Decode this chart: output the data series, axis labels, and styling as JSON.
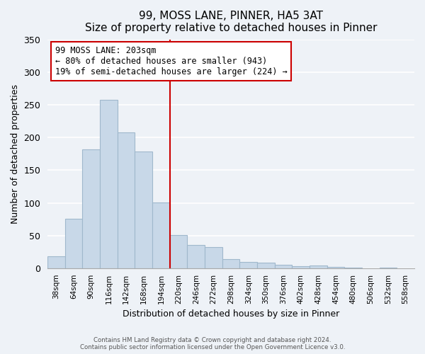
{
  "title": "99, MOSS LANE, PINNER, HA5 3AT",
  "subtitle": "Size of property relative to detached houses in Pinner",
  "xlabel": "Distribution of detached houses by size in Pinner",
  "ylabel": "Number of detached properties",
  "bar_labels": [
    "38sqm",
    "64sqm",
    "90sqm",
    "116sqm",
    "142sqm",
    "168sqm",
    "194sqm",
    "220sqm",
    "246sqm",
    "272sqm",
    "298sqm",
    "324sqm",
    "350sqm",
    "376sqm",
    "402sqm",
    "428sqm",
    "454sqm",
    "480sqm",
    "506sqm",
    "532sqm",
    "558sqm"
  ],
  "bar_values": [
    18,
    76,
    182,
    257,
    208,
    178,
    101,
    51,
    36,
    32,
    14,
    10,
    9,
    5,
    3,
    4,
    2,
    1,
    0,
    1,
    0
  ],
  "bar_color": "#c8d8e8",
  "bar_edge_color": "#a0b8cc",
  "vline_x_index": 7,
  "vline_color": "#cc0000",
  "annotation_title": "99 MOSS LANE: 203sqm",
  "annotation_line1": "← 80% of detached houses are smaller (943)",
  "annotation_line2": "19% of semi-detached houses are larger (224) →",
  "annotation_box_facecolor": "#ffffff",
  "annotation_box_edgecolor": "#cc0000",
  "ylim": [
    0,
    350
  ],
  "yticks": [
    0,
    50,
    100,
    150,
    200,
    250,
    300,
    350
  ],
  "footer1": "Contains HM Land Registry data © Crown copyright and database right 2024.",
  "footer2": "Contains public sector information licensed under the Open Government Licence v3.0.",
  "background_color": "#eef2f7",
  "grid_color": "#ffffff",
  "spine_color": "#aaaaaa"
}
